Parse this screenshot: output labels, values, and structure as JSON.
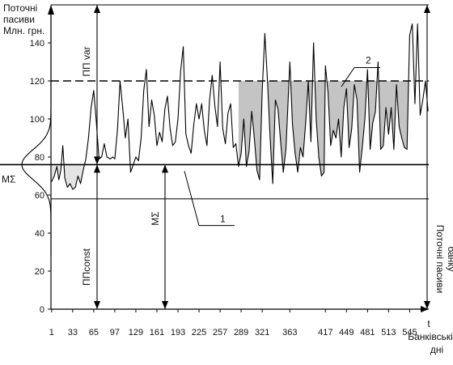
{
  "chart_data": {
    "type": "line",
    "ylabel_lines": [
      "Поточні",
      "пасиви",
      "Млн. грн."
    ],
    "xlabel_lines": [
      "t",
      "Банківські",
      "дні"
    ],
    "right_label_lines": [
      "Поточні пасиви",
      "банку"
    ],
    "ylim": [
      0,
      160
    ],
    "xlim": [
      0,
      574
    ],
    "y_ticks": [
      0,
      20,
      40,
      60,
      80,
      100,
      120,
      140
    ],
    "y_tick_labels": [
      "0",
      "20",
      "40",
      "60",
      "80",
      "100",
      "120",
      "140"
    ],
    "x_ticks": [
      1,
      33,
      65,
      97,
      129,
      161,
      193,
      225,
      257,
      289,
      321,
      363,
      417,
      449,
      481,
      513,
      545
    ],
    "x_tick_labels": [
      "1",
      "33",
      "65",
      "97",
      "129",
      "161",
      "193",
      "225",
      "257",
      "289",
      "321",
      "363",
      "417",
      "449",
      "481",
      "513",
      "545"
    ],
    "reference_lines": {
      "upper": 120,
      "mean": 76,
      "lower": 58
    },
    "annotations": {
      "pp_var": "ПП var",
      "pp_const": "ППconst",
      "m_sigma_arrow": "MΣ",
      "m_sigma_left": "MΣ",
      "label_1": "1",
      "label_2": "2"
    },
    "series": [
      {
        "values": [
          [
            1,
            67
          ],
          [
            5,
            70
          ],
          [
            9,
            75
          ],
          [
            12,
            68
          ],
          [
            15,
            73
          ],
          [
            18,
            86
          ],
          [
            21,
            69
          ],
          [
            25,
            64
          ],
          [
            29,
            66
          ],
          [
            33,
            63
          ],
          [
            37,
            64
          ],
          [
            41,
            70
          ],
          [
            45,
            66
          ],
          [
            49,
            73
          ],
          [
            53,
            79
          ],
          [
            57,
            90
          ],
          [
            61,
            106
          ],
          [
            65,
            115
          ],
          [
            69,
            98
          ],
          [
            73,
            79
          ],
          [
            77,
            80
          ],
          [
            81,
            87
          ],
          [
            85,
            80
          ],
          [
            90,
            79
          ],
          [
            94,
            80
          ],
          [
            97,
            79
          ],
          [
            101,
            94
          ],
          [
            105,
            120
          ],
          [
            109,
            106
          ],
          [
            113,
            90
          ],
          [
            117,
            100
          ],
          [
            121,
            72
          ],
          [
            125,
            76
          ],
          [
            129,
            80
          ],
          [
            133,
            78
          ],
          [
            137,
            90
          ],
          [
            141,
            115
          ],
          [
            145,
            126
          ],
          [
            149,
            96
          ],
          [
            153,
            110
          ],
          [
            157,
            102
          ],
          [
            161,
            86
          ],
          [
            165,
            93
          ],
          [
            169,
            88
          ],
          [
            173,
            105
          ],
          [
            177,
            112
          ],
          [
            181,
            95
          ],
          [
            185,
            86
          ],
          [
            189,
            88
          ],
          [
            193,
            100
          ],
          [
            197,
            125
          ],
          [
            201,
            138
          ],
          [
            205,
            92
          ],
          [
            209,
            86
          ],
          [
            213,
            82
          ],
          [
            217,
            97
          ],
          [
            221,
            108
          ],
          [
            225,
            100
          ],
          [
            229,
            108
          ],
          [
            233,
            94
          ],
          [
            237,
            86
          ],
          [
            241,
            110
          ],
          [
            245,
            123
          ],
          [
            249,
            107
          ],
          [
            253,
            96
          ],
          [
            257,
            130
          ],
          [
            261,
            95
          ],
          [
            265,
            87
          ],
          [
            269,
            103
          ],
          [
            273,
            108
          ],
          [
            277,
            85
          ],
          [
            281,
            87
          ],
          [
            285,
            75
          ],
          [
            289,
            82
          ],
          [
            293,
            100
          ],
          [
            297,
            75
          ],
          [
            301,
            83
          ],
          [
            305,
            104
          ],
          [
            309,
            90
          ],
          [
            313,
            73
          ],
          [
            317,
            68
          ],
          [
            321,
            115
          ],
          [
            325,
            145
          ],
          [
            329,
            120
          ],
          [
            333,
            90
          ],
          [
            337,
            66
          ],
          [
            341,
            110
          ],
          [
            345,
            105
          ],
          [
            349,
            88
          ],
          [
            353,
            72
          ],
          [
            357,
            84
          ],
          [
            363,
            130
          ],
          [
            367,
            97
          ],
          [
            371,
            82
          ],
          [
            375,
            72
          ],
          [
            379,
            85
          ],
          [
            383,
            80
          ],
          [
            387,
            98
          ],
          [
            391,
            120
          ],
          [
            395,
            88
          ],
          [
            399,
            140
          ],
          [
            403,
            100
          ],
          [
            407,
            80
          ],
          [
            411,
            70
          ],
          [
            415,
            72
          ],
          [
            417,
            128
          ],
          [
            421,
            114
          ],
          [
            425,
            86
          ],
          [
            429,
            94
          ],
          [
            433,
            90
          ],
          [
            437,
            100
          ],
          [
            441,
            80
          ],
          [
            445,
            106
          ],
          [
            449,
            116
          ],
          [
            453,
            85
          ],
          [
            457,
            95
          ],
          [
            461,
            118
          ],
          [
            465,
            110
          ],
          [
            469,
            72
          ],
          [
            473,
            85
          ],
          [
            477,
            100
          ],
          [
            481,
            126
          ],
          [
            485,
            84
          ],
          [
            489,
            98
          ],
          [
            493,
            104
          ],
          [
            497,
            130
          ],
          [
            501,
            84
          ],
          [
            505,
            86
          ],
          [
            509,
            106
          ],
          [
            513,
            92
          ],
          [
            517,
            106
          ],
          [
            521,
            84
          ],
          [
            525,
            118
          ],
          [
            529,
            96
          ],
          [
            533,
            90
          ],
          [
            537,
            85
          ],
          [
            541,
            84
          ],
          [
            545,
            144
          ],
          [
            549,
            150
          ],
          [
            553,
            108
          ],
          [
            557,
            150
          ],
          [
            561,
            102
          ],
          [
            565,
            110
          ],
          [
            569,
            120
          ],
          [
            573,
            104
          ]
        ]
      }
    ],
    "shaded_regions": [
      {
        "x_from": 1,
        "x_to": 60,
        "between": "mean_and_series_below"
      },
      {
        "x_from": 285,
        "x_to": 545,
        "between": "series_and_upper"
      }
    ],
    "grid": false,
    "legend": "none"
  }
}
